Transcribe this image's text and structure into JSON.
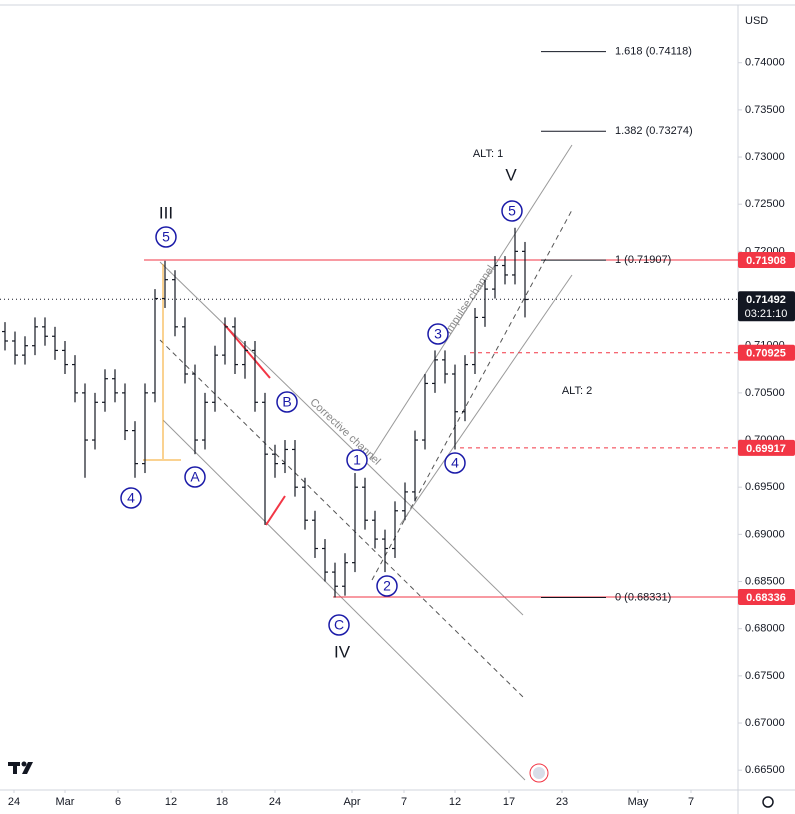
{
  "chart_data": {
    "type": "ohlc",
    "currency": "USD",
    "color": "#131722",
    "x": [
      0.5,
      1.5,
      2.5,
      3.5,
      4.5,
      5.5,
      6.5,
      7.5,
      8.5,
      9.5,
      10.5,
      11.5,
      12.5,
      13.5,
      14.5,
      15.5,
      16.5,
      17.5,
      18.5,
      19.5,
      20.5,
      21.5,
      22.5,
      23.5,
      24.5,
      25.5,
      26.5,
      27.5,
      28.5,
      29.5,
      30.5,
      31.5,
      32.5,
      33.5,
      34.5,
      35.5,
      36.5,
      37.5,
      38.5,
      39.5,
      40.5,
      41.5,
      42.5,
      43.5,
      44.5,
      45.5,
      46.5,
      47.5,
      48.5,
      49.5,
      50.5,
      51.5,
      52.5
    ],
    "open": [
      0.7115,
      0.7105,
      0.709,
      0.71,
      0.712,
      0.711,
      0.7095,
      0.708,
      0.705,
      0.7,
      0.704,
      0.7065,
      0.705,
      0.701,
      0.6975,
      0.705,
      0.715,
      0.717,
      0.712,
      0.707,
      0.7,
      0.704,
      0.709,
      0.712,
      0.708,
      0.7095,
      0.704,
      0.6985,
      0.6975,
      0.699,
      0.695,
      0.6915,
      0.6885,
      0.686,
      0.6845,
      0.687,
      0.695,
      0.6915,
      0.6895,
      0.6885,
      0.6925,
      0.6945,
      0.7,
      0.706,
      0.7085,
      0.707,
      0.703,
      0.708,
      0.713,
      0.716,
      0.7185,
      0.7175,
      0.72
    ],
    "high": [
      0.7125,
      0.7115,
      0.711,
      0.713,
      0.713,
      0.712,
      0.7105,
      0.709,
      0.706,
      0.705,
      0.7075,
      0.7075,
      0.706,
      0.702,
      0.706,
      0.716,
      0.719,
      0.718,
      0.713,
      0.708,
      0.705,
      0.71,
      0.713,
      0.713,
      0.7105,
      0.7105,
      0.705,
      0.6995,
      0.7,
      0.7,
      0.696,
      0.6925,
      0.6895,
      0.687,
      0.688,
      0.6965,
      0.696,
      0.6925,
      0.6905,
      0.6935,
      0.6955,
      0.701,
      0.707,
      0.7095,
      0.7095,
      0.708,
      0.709,
      0.714,
      0.717,
      0.7195,
      0.7195,
      0.7225,
      0.721
    ],
    "low": [
      0.7095,
      0.708,
      0.708,
      0.709,
      0.71,
      0.7085,
      0.707,
      0.704,
      0.696,
      0.699,
      0.703,
      0.704,
      0.7,
      0.696,
      0.6965,
      0.704,
      0.714,
      0.711,
      0.706,
      0.6985,
      0.699,
      0.703,
      0.708,
      0.707,
      0.7065,
      0.703,
      0.691,
      0.696,
      0.6965,
      0.694,
      0.6905,
      0.6875,
      0.685,
      0.6833,
      0.6835,
      0.686,
      0.6905,
      0.6885,
      0.686,
      0.6875,
      0.6915,
      0.6935,
      0.699,
      0.705,
      0.706,
      0.699,
      0.702,
      0.707,
      0.712,
      0.715,
      0.7165,
      0.7165,
      0.713
    ],
    "close": [
      0.7105,
      0.709,
      0.71,
      0.712,
      0.711,
      0.7095,
      0.708,
      0.705,
      0.7,
      0.704,
      0.7065,
      0.705,
      0.701,
      0.6975,
      0.705,
      0.715,
      0.717,
      0.712,
      0.707,
      0.7,
      0.704,
      0.709,
      0.712,
      0.708,
      0.7095,
      0.704,
      0.6985,
      0.6975,
      0.699,
      0.695,
      0.6915,
      0.6885,
      0.686,
      0.6845,
      0.687,
      0.695,
      0.6915,
      0.6895,
      0.6885,
      0.6925,
      0.6945,
      0.7,
      0.706,
      0.7085,
      0.707,
      0.703,
      0.708,
      0.713,
      0.716,
      0.7185,
      0.7175,
      0.72,
      0.7149
    ],
    "xlim": [
      0,
      73.8
    ],
    "ylim": [
      0.6629,
      0.7458
    ],
    "xticks": [
      {
        "value": 1.4,
        "label": "24"
      },
      {
        "value": 6.5,
        "label": "Mar"
      },
      {
        "value": 11.8,
        "label": "6"
      },
      {
        "value": 17.1,
        "label": "12"
      },
      {
        "value": 22.2,
        "label": "18"
      },
      {
        "value": 27.5,
        "label": "24"
      },
      {
        "value": 35.2,
        "label": "Apr"
      },
      {
        "value": 40.4,
        "label": "7"
      },
      {
        "value": 45.5,
        "label": "12"
      },
      {
        "value": 50.9,
        "label": "17"
      },
      {
        "value": 56.2,
        "label": "23"
      },
      {
        "value": 63.8,
        "label": "May"
      },
      {
        "value": 69.1,
        "label": "7"
      }
    ],
    "yticks": [
      {
        "value": 0.665,
        "label": "0.66500"
      },
      {
        "value": 0.67,
        "label": "0.67000"
      },
      {
        "value": 0.675,
        "label": "0.67500"
      },
      {
        "value": 0.68,
        "label": "0.68000"
      },
      {
        "value": 0.685,
        "label": "0.68500"
      },
      {
        "value": 0.69,
        "label": "0.69000"
      },
      {
        "value": 0.695,
        "label": "0.69500"
      },
      {
        "value": 0.7,
        "label": "0.70000"
      },
      {
        "value": 0.705,
        "label": "0.70500"
      },
      {
        "value": 0.71,
        "label": "0.71000"
      },
      {
        "value": 0.715,
        "label": "0.71500"
      },
      {
        "value": 0.72,
        "label": "0.72000"
      },
      {
        "value": 0.725,
        "label": "0.72500"
      },
      {
        "value": 0.73,
        "label": "0.73000"
      },
      {
        "value": 0.735,
        "label": "0.73500"
      },
      {
        "value": 0.74,
        "label": "0.74000"
      }
    ],
    "levels": [
      {
        "value": 0.71908,
        "color": "#f23645",
        "style": "solid",
        "from": 14.4
      },
      {
        "value": 0.70925,
        "color": "#f23645",
        "style": "dashed",
        "from": 47
      },
      {
        "value": 0.69917,
        "color": "#f23645",
        "style": "dashed",
        "from": 46
      },
      {
        "value": 0.68336,
        "color": "#f23645",
        "style": "solid",
        "from": 33.3
      }
    ],
    "fib": [
      {
        "value": 0.74118,
        "label": "1.618 (0.74118)"
      },
      {
        "value": 0.73274,
        "label": "1.382 (0.73274)"
      },
      {
        "value": 0.71907,
        "label": "1 (0.71907)"
      },
      {
        "value": 0.68331,
        "label": "0 (0.68331)"
      }
    ],
    "last_price": {
      "value": 0.71492,
      "countdown": "03:21:10",
      "color": "#131722"
    },
    "waves": [
      "5",
      "4",
      "A",
      "B",
      "C",
      "1",
      "2",
      "3",
      "4",
      "5"
    ],
    "degree_labels": [
      "III",
      "V",
      "IV",
      "ALT: 1",
      "ALT: 2"
    ],
    "channels": [
      "Corrective channel",
      "Impulse channel"
    ]
  }
}
